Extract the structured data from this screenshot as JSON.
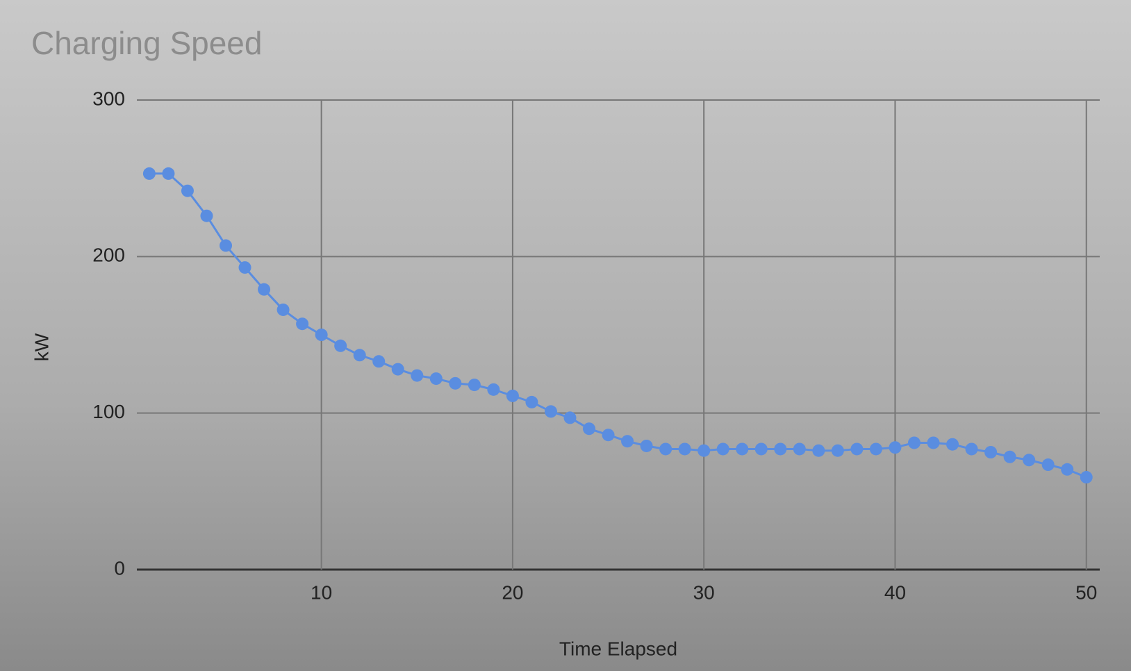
{
  "chart_data": {
    "type": "line",
    "title": "Charging Speed",
    "x_label": "Time Elapsed",
    "y_label": "kW",
    "x": [
      1,
      2,
      3,
      4,
      5,
      6,
      7,
      8,
      9,
      10,
      11,
      12,
      13,
      14,
      15,
      16,
      17,
      18,
      19,
      20,
      21,
      22,
      23,
      24,
      25,
      26,
      27,
      28,
      29,
      30,
      31,
      32,
      33,
      34,
      35,
      36,
      37,
      38,
      39,
      40,
      41,
      42,
      43,
      44,
      45,
      46,
      47,
      48,
      49,
      50
    ],
    "series": [
      {
        "name": "kW",
        "color": "#5a8de0",
        "values": [
          253,
          253,
          242,
          226,
          207,
          193,
          179,
          166,
          157,
          150,
          143,
          137,
          133,
          128,
          124,
          122,
          119,
          118,
          115,
          111,
          107,
          101,
          97,
          90,
          86,
          82,
          79,
          77,
          77,
          76,
          77,
          77,
          77,
          77,
          77,
          76,
          76,
          77,
          77,
          78,
          81,
          81,
          80,
          77,
          75,
          72,
          70,
          67,
          64,
          59
        ]
      }
    ],
    "xlim": [
      0.35,
      50.7
    ],
    "ylim": [
      0,
      300
    ],
    "xticks": [
      10,
      20,
      30,
      40,
      50
    ],
    "yticks": [
      0,
      100,
      200,
      300
    ],
    "grid": true
  }
}
